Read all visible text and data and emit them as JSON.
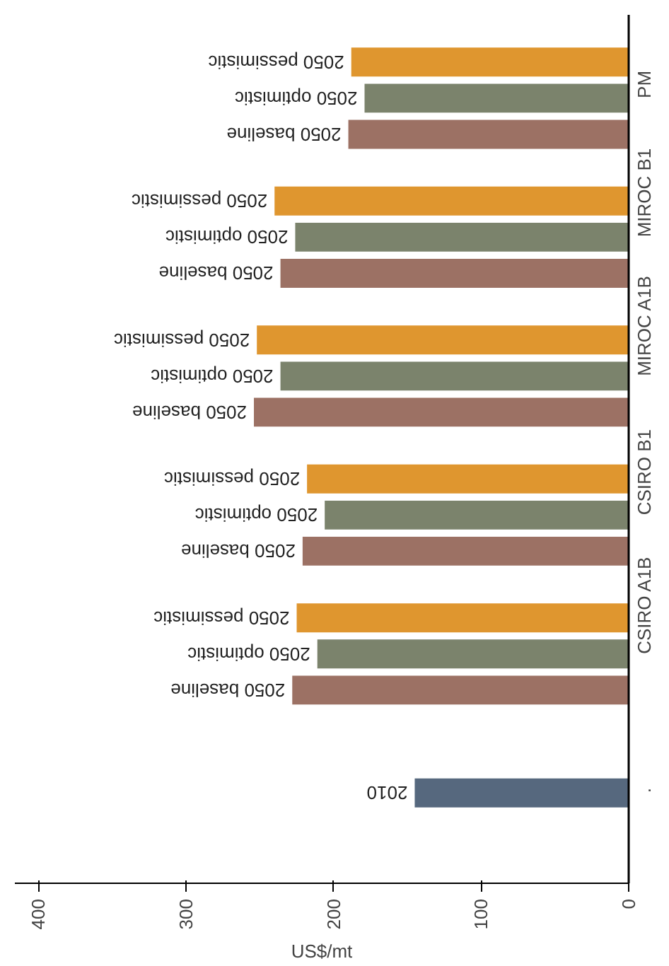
{
  "chart_data": {
    "type": "bar",
    "orientation": "horizontal",
    "xlabel": "US$/mt",
    "categories": [
      "PM",
      "MIROC B1",
      "MIROC A1B",
      "CSIRO B1",
      "CSIRO A1B",
      "."
    ],
    "series": [
      {
        "name": "2010",
        "color": "#56687e",
        "values": [
          null,
          null,
          null,
          null,
          null,
          145
        ]
      },
      {
        "name": "2050 baseline",
        "color": "#9c7164",
        "values": [
          190,
          236,
          254,
          221,
          228,
          null
        ]
      },
      {
        "name": "2050 optimistic",
        "color": "#7b836c",
        "values": [
          179,
          226,
          236,
          206,
          211,
          null
        ]
      },
      {
        "name": "2050 pessimistic",
        "color": "#df962f",
        "values": [
          188,
          240,
          252,
          218,
          225,
          null
        ]
      }
    ],
    "xlim": [
      416,
      0
    ],
    "xticks": [
      0,
      100,
      200,
      300,
      400
    ]
  }
}
